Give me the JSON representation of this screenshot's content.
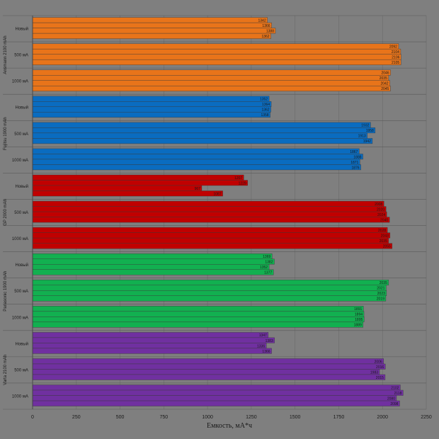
{
  "chart_data": {
    "type": "bar",
    "orientation": "horizontal",
    "xlabel": "Емкость, мА*ч",
    "xlim": [
      0,
      2250
    ],
    "xticks": [
      0,
      250,
      500,
      750,
      1000,
      1250,
      1500,
      1750,
      2000,
      2250
    ],
    "grid": true,
    "groups": [
      {
        "name": "Ansmann 2100 mAh",
        "color": "#e8741a",
        "categories": [
          {
            "label": "Новый",
            "values": [
              1342,
              1366,
              1388,
              1362
            ]
          },
          {
            "label": "500 мА",
            "values": [
              2092,
              2104,
              2106,
              2105
            ]
          },
          {
            "label": "1000 мА",
            "values": [
              2046,
              2035,
              2042,
              2045
            ]
          }
        ]
      },
      {
        "name": "Fujitsu 1900 mAh",
        "color": "#0a6cc0",
        "categories": [
          {
            "label": "Новый",
            "values": [
              1352,
              1364,
              1362,
              1358
            ]
          },
          {
            "label": "500 мА",
            "values": [
              1932,
              1958,
              1913,
              1942
            ]
          },
          {
            "label": "1000 мА",
            "values": [
              1867,
              1888,
              1871,
              1876
            ]
          }
        ]
      },
      {
        "name": "GP 2000 mAh",
        "color": "#c00000",
        "categories": [
          {
            "label": "Новый",
            "values": [
              1207,
              1229,
              967,
              1087
            ]
          },
          {
            "label": "500 мА",
            "values": [
              2008,
              2020,
              2024,
              2040
            ]
          },
          {
            "label": "1000 мА",
            "values": [
              2028,
              2043,
              2035,
              2055
            ]
          }
        ]
      },
      {
        "name": "Panasonic 1900 mAh",
        "color": "#12b050",
        "categories": [
          {
            "label": "Новый",
            "values": [
              1369,
              1382,
              1352,
              1377
            ]
          },
          {
            "label": "500 мА",
            "values": [
              2035,
              2021,
              2023,
              2019
            ]
          },
          {
            "label": "1000 мА",
            "values": [
              1891,
              1894,
              1895,
              1889
            ]
          }
        ]
      },
      {
        "name": "Varta 2100 mAh",
        "color": "#7030a0",
        "categories": [
          {
            "label": "Новый",
            "values": [
              1347,
              1383,
              1336,
              1366
            ]
          },
          {
            "label": "500 мА",
            "values": [
              2006,
              2016,
              1983,
              2015
            ]
          },
          {
            "label": "1000 мА",
            "values": [
              2102,
              2118,
              2080,
              2098
            ]
          }
        ]
      }
    ]
  }
}
